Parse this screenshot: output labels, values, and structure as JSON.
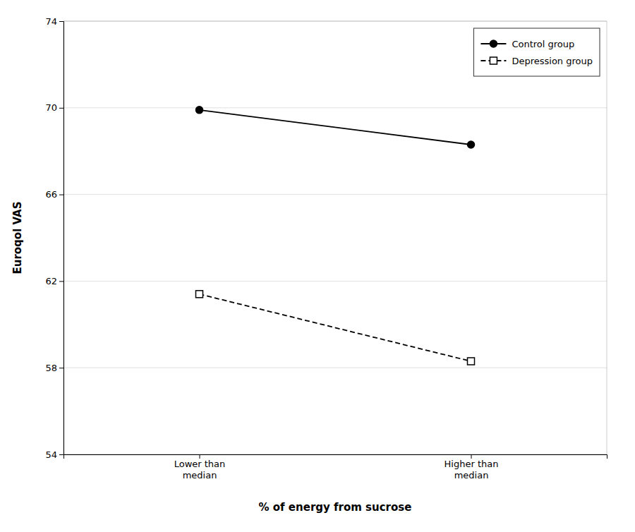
{
  "chart_data": {
    "type": "line",
    "xlabel": "% of energy from sucrose",
    "ylabel": "Euroqol VAS",
    "categories": [
      "Lower than\nmedian",
      "Higher than\nmedian"
    ],
    "series": [
      {
        "name": "Control group",
        "color": "#000000",
        "marker": "circle",
        "line_style": "solid",
        "values": [
          69.9,
          68.3
        ]
      },
      {
        "name": "Depression group",
        "color": "#000000",
        "marker": "open-square",
        "line_style": "dashed",
        "values": [
          61.4,
          58.3
        ]
      }
    ],
    "ylim": [
      54,
      74
    ],
    "yticks": [
      54,
      58,
      62,
      66,
      70,
      74
    ],
    "grid": true,
    "legend": "upper right"
  }
}
